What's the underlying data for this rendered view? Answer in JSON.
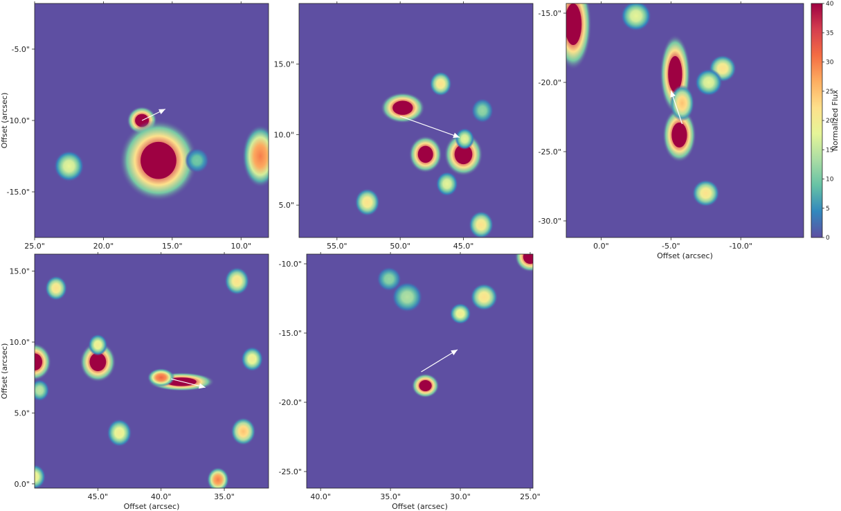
{
  "chart_data": [
    {
      "type": "heatmap",
      "panel": "top-left",
      "xlabel": "",
      "ylabel": "Offset (arcsec)",
      "xlim": [
        25.0,
        8.0
      ],
      "ylim": [
        -18.2,
        -1.8
      ],
      "xticks": [
        25.0,
        20.0,
        15.0,
        10.0
      ],
      "xtick_labels": [
        "25.0\"",
        "20.0\"",
        "15.0\"",
        "10.0\""
      ],
      "yticks": [
        -5.0,
        -10.0,
        -15.0
      ],
      "ytick_labels": [
        "-5.0\"",
        "-10.0\"",
        "-15.0\""
      ],
      "arrow": {
        "from": [
          17.2,
          -10.0
        ],
        "to": [
          15.5,
          -9.2
        ]
      },
      "sources": [
        {
          "x": 17.2,
          "y": -10.0,
          "peak": 40,
          "rx": 0.5,
          "ry": 0.45
        },
        {
          "x": 16.0,
          "y": -12.8,
          "peak": 40,
          "rx": 1.3,
          "ry": 1.3
        },
        {
          "x": 22.5,
          "y": -13.2,
          "peak": 18,
          "rx": 0.5,
          "ry": 0.5
        },
        {
          "x": 13.2,
          "y": -12.8,
          "peak": 10,
          "rx": 0.4,
          "ry": 0.4
        },
        {
          "x": 8.6,
          "y": -12.5,
          "peak": 30,
          "rx": 0.6,
          "ry": 1.0
        }
      ]
    },
    {
      "type": "heatmap",
      "panel": "top-center",
      "xlabel": "",
      "ylabel": "",
      "xlim": [
        58.0,
        39.5
      ],
      "ylim": [
        2.7,
        19.3
      ],
      "xticks": [
        55.0,
        50.0,
        45.0
      ],
      "xtick_labels": [
        "55.0\"",
        "50.0\"",
        "45.0\""
      ],
      "yticks": [
        15.0,
        10.0,
        5.0
      ],
      "ytick_labels": [
        "15.0\"",
        "10.0\"",
        "5.0\""
      ],
      "arrow": {
        "from": [
          50.0,
          11.3
        ],
        "to": [
          45.3,
          9.8
        ]
      },
      "sources": [
        {
          "x": 49.8,
          "y": 11.9,
          "peak": 40,
          "rx": 0.8,
          "ry": 0.5
        },
        {
          "x": 48.0,
          "y": 8.6,
          "peak": 40,
          "rx": 0.6,
          "ry": 0.6
        },
        {
          "x": 45.0,
          "y": 8.6,
          "peak": 40,
          "rx": 0.7,
          "ry": 0.7
        },
        {
          "x": 46.8,
          "y": 13.6,
          "peak": 22,
          "rx": 0.4,
          "ry": 0.4
        },
        {
          "x": 44.9,
          "y": 9.7,
          "peak": 18,
          "rx": 0.35,
          "ry": 0.35
        },
        {
          "x": 52.6,
          "y": 5.2,
          "peak": 22,
          "rx": 0.45,
          "ry": 0.45
        },
        {
          "x": 46.3,
          "y": 6.5,
          "peak": 18,
          "rx": 0.4,
          "ry": 0.4
        },
        {
          "x": 43.6,
          "y": 3.6,
          "peak": 22,
          "rx": 0.45,
          "ry": 0.45
        },
        {
          "x": 43.5,
          "y": 11.7,
          "peak": 12,
          "rx": 0.4,
          "ry": 0.4
        }
      ]
    },
    {
      "type": "heatmap",
      "panel": "top-right",
      "xlabel": "Offset (arcsec)",
      "ylabel": "",
      "xlim": [
        2.5,
        -14.5
      ],
      "ylim": [
        -31.2,
        -14.3
      ],
      "xticks": [
        0.0,
        -5.0,
        -10.0
      ],
      "xtick_labels": [
        "0.0\"",
        "-5.0\"",
        "-10.0\""
      ],
      "yticks": [
        -15.0,
        -20.0,
        -25.0,
        -30.0
      ],
      "ytick_labels": [
        "-15.0\"",
        "-20.0\"",
        "-25.0\"",
        "-30.0\""
      ],
      "arrow": {
        "from": [
          -5.8,
          -23.0
        ],
        "to": [
          -5.0,
          -20.6
        ]
      },
      "sources": [
        {
          "x": -5.3,
          "y": -19.4,
          "peak": 40,
          "rx": 0.5,
          "ry": 1.3
        },
        {
          "x": -5.6,
          "y": -23.8,
          "peak": 40,
          "rx": 0.55,
          "ry": 0.9
        },
        {
          "x": -5.8,
          "y": -21.5,
          "peak": 25,
          "rx": 0.4,
          "ry": 0.6
        },
        {
          "x": 2.0,
          "y": -15.8,
          "peak": 40,
          "rx": 0.6,
          "ry": 1.5
        },
        {
          "x": -8.7,
          "y": -19.0,
          "peak": 22,
          "rx": 0.45,
          "ry": 0.45
        },
        {
          "x": -7.7,
          "y": -20.0,
          "peak": 18,
          "rx": 0.45,
          "ry": 0.45
        },
        {
          "x": -7.5,
          "y": -28.0,
          "peak": 22,
          "rx": 0.45,
          "ry": 0.45
        },
        {
          "x": -2.5,
          "y": -15.2,
          "peak": 18,
          "rx": 0.5,
          "ry": 0.5
        }
      ]
    },
    {
      "type": "heatmap",
      "panel": "bottom-left",
      "xlabel": "Offset (arcsec)",
      "ylabel": "Offset (arcsec)",
      "xlim": [
        50.0,
        31.5
      ],
      "ylim": [
        -0.3,
        16.2
      ],
      "xticks": [
        45.0,
        40.0,
        35.0
      ],
      "xtick_labels": [
        "45.0\"",
        "40.0\"",
        "35.0\""
      ],
      "yticks": [
        15.0,
        10.0,
        5.0,
        0.0
      ],
      "ytick_labels": [
        "15.0\"",
        "10.0\"",
        "5.0\"",
        "0.0\""
      ],
      "arrow": {
        "from": [
          39.2,
          7.4
        ],
        "to": [
          36.5,
          6.8
        ]
      },
      "sources": [
        {
          "x": 50.0,
          "y": 8.6,
          "peak": 40,
          "rx": 0.6,
          "ry": 0.6
        },
        {
          "x": 45.0,
          "y": 8.6,
          "peak": 40,
          "rx": 0.65,
          "ry": 0.65
        },
        {
          "x": 38.4,
          "y": 7.2,
          "peak": 40,
          "rx": 1.2,
          "ry": 0.3
        },
        {
          "x": 40.0,
          "y": 7.5,
          "peak": 32,
          "rx": 0.5,
          "ry": 0.3
        },
        {
          "x": 48.3,
          "y": 13.8,
          "peak": 22,
          "rx": 0.4,
          "ry": 0.4
        },
        {
          "x": 45.0,
          "y": 9.8,
          "peak": 20,
          "rx": 0.35,
          "ry": 0.35
        },
        {
          "x": 43.3,
          "y": 3.6,
          "peak": 20,
          "rx": 0.45,
          "ry": 0.45
        },
        {
          "x": 49.6,
          "y": 6.6,
          "peak": 15,
          "rx": 0.35,
          "ry": 0.35
        },
        {
          "x": 50.0,
          "y": 0.5,
          "peak": 20,
          "rx": 0.4,
          "ry": 0.4
        },
        {
          "x": 35.5,
          "y": 0.3,
          "peak": 30,
          "rx": 0.4,
          "ry": 0.4
        },
        {
          "x": 33.5,
          "y": 3.7,
          "peak": 25,
          "rx": 0.45,
          "ry": 0.45
        },
        {
          "x": 32.8,
          "y": 8.8,
          "peak": 20,
          "rx": 0.4,
          "ry": 0.4
        },
        {
          "x": 34.0,
          "y": 14.3,
          "peak": 22,
          "rx": 0.45,
          "ry": 0.45
        }
      ]
    },
    {
      "type": "heatmap",
      "panel": "bottom-center",
      "xlabel": "Offset (arcsec)",
      "ylabel": "",
      "xlim": [
        41.0,
        24.8
      ],
      "ylim": [
        -26.2,
        -9.3
      ],
      "xticks": [
        40.0,
        35.0,
        30.0,
        25.0
      ],
      "xtick_labels": [
        "40.0\"",
        "35.0\"",
        "30.0\"",
        "25.0\""
      ],
      "yticks": [
        -10.0,
        -15.0,
        -20.0,
        -25.0
      ],
      "ytick_labels": [
        "-10.0\"",
        "-15.0\"",
        "-20.0\"",
        "-25.0\""
      ],
      "arrow": {
        "from": [
          32.8,
          -17.8
        ],
        "to": [
          30.2,
          -16.2
        ]
      },
      "sources": [
        {
          "x": 32.5,
          "y": -18.8,
          "peak": 40,
          "rx": 0.45,
          "ry": 0.4
        },
        {
          "x": 30.0,
          "y": -13.6,
          "peak": 20,
          "rx": 0.35,
          "ry": 0.35
        },
        {
          "x": 28.3,
          "y": -12.4,
          "peak": 22,
          "rx": 0.45,
          "ry": 0.45
        },
        {
          "x": 33.8,
          "y": -12.4,
          "peak": 14,
          "rx": 0.5,
          "ry": 0.5
        },
        {
          "x": 35.1,
          "y": -11.1,
          "peak": 12,
          "rx": 0.4,
          "ry": 0.4
        },
        {
          "x": 25.0,
          "y": -9.5,
          "peak": 40,
          "rx": 0.5,
          "ry": 0.5
        }
      ]
    }
  ],
  "colorbar": {
    "label": "Normalized Flux",
    "range": [
      0,
      40
    ],
    "ticks": [
      0,
      5,
      10,
      15,
      20,
      25,
      30,
      35,
      40
    ],
    "colors": [
      "#5e4fa2",
      "#3288bd",
      "#66c2a5",
      "#abdda4",
      "#e6f598",
      "#fee08b",
      "#fdae61",
      "#f46d43",
      "#d53e4f",
      "#9e0142"
    ]
  }
}
